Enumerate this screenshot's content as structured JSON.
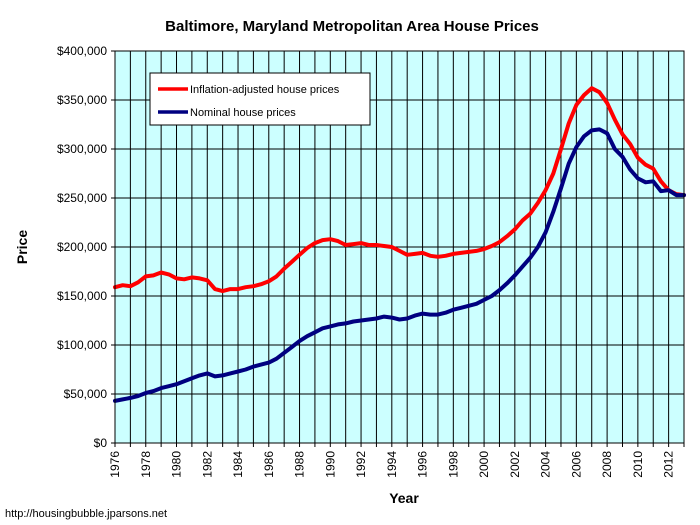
{
  "chart_data": {
    "type": "line",
    "title": "Baltimore, Maryland Metropolitan Area House Prices",
    "xlabel": "Year",
    "ylabel": "Price",
    "xlim": [
      1976,
      2013
    ],
    "ylim": [
      0,
      400000
    ],
    "x_ticks": [
      "1976",
      "1978",
      "1980",
      "1982",
      "1984",
      "1986",
      "1988",
      "1990",
      "1992",
      "1994",
      "1996",
      "1998",
      "2000",
      "2002",
      "2004",
      "2006",
      "2008",
      "2010",
      "2012"
    ],
    "y_ticks": [
      "$0",
      "$50,000",
      "$100,000",
      "$150,000",
      "$200,000",
      "$250,000",
      "$300,000",
      "$350,000",
      "$400,000"
    ],
    "grid": true,
    "legend_position": "top-left",
    "plot_background": "#ccffff",
    "series": [
      {
        "name": "Inflation-adjusted house prices",
        "color": "#ff0000",
        "points": [
          [
            1976.0,
            159000
          ],
          [
            1976.5,
            161000
          ],
          [
            1977.0,
            160000
          ],
          [
            1977.5,
            164000
          ],
          [
            1978.0,
            170000
          ],
          [
            1978.5,
            171000
          ],
          [
            1979.0,
            174000
          ],
          [
            1979.5,
            172000
          ],
          [
            1980.0,
            168000
          ],
          [
            1980.5,
            167000
          ],
          [
            1981.0,
            169000
          ],
          [
            1981.5,
            168000
          ],
          [
            1982.0,
            166000
          ],
          [
            1982.5,
            157000
          ],
          [
            1983.0,
            155000
          ],
          [
            1983.5,
            157000
          ],
          [
            1984.0,
            157000
          ],
          [
            1984.5,
            159000
          ],
          [
            1985.0,
            160000
          ],
          [
            1985.5,
            162000
          ],
          [
            1986.0,
            165000
          ],
          [
            1986.5,
            170000
          ],
          [
            1987.0,
            178000
          ],
          [
            1987.5,
            185000
          ],
          [
            1988.0,
            192000
          ],
          [
            1988.5,
            199000
          ],
          [
            1989.0,
            204000
          ],
          [
            1989.5,
            207000
          ],
          [
            1990.0,
            208000
          ],
          [
            1990.5,
            206000
          ],
          [
            1991.0,
            202000
          ],
          [
            1991.5,
            203000
          ],
          [
            1992.0,
            204000
          ],
          [
            1992.5,
            202000
          ],
          [
            1993.0,
            202000
          ],
          [
            1993.5,
            201000
          ],
          [
            1994.0,
            200000
          ],
          [
            1994.5,
            196000
          ],
          [
            1995.0,
            192000
          ],
          [
            1995.5,
            193000
          ],
          [
            1996.0,
            194000
          ],
          [
            1996.5,
            191000
          ],
          [
            1997.0,
            190000
          ],
          [
            1997.5,
            191000
          ],
          [
            1998.0,
            193000
          ],
          [
            1998.5,
            194000
          ],
          [
            1999.0,
            195000
          ],
          [
            1999.5,
            196000
          ],
          [
            2000.0,
            198000
          ],
          [
            2000.5,
            201000
          ],
          [
            2001.0,
            205000
          ],
          [
            2001.5,
            211000
          ],
          [
            2002.0,
            218000
          ],
          [
            2002.5,
            227000
          ],
          [
            2003.0,
            234000
          ],
          [
            2003.5,
            245000
          ],
          [
            2004.0,
            258000
          ],
          [
            2004.5,
            275000
          ],
          [
            2005.0,
            300000
          ],
          [
            2005.5,
            326000
          ],
          [
            2006.0,
            345000
          ],
          [
            2006.5,
            355000
          ],
          [
            2007.0,
            362000
          ],
          [
            2007.5,
            358000
          ],
          [
            2008.0,
            347000
          ],
          [
            2008.5,
            330000
          ],
          [
            2009.0,
            315000
          ],
          [
            2009.5,
            305000
          ],
          [
            2010.0,
            291000
          ],
          [
            2010.5,
            284000
          ],
          [
            2011.0,
            280000
          ],
          [
            2011.5,
            267000
          ],
          [
            2012.0,
            258000
          ],
          [
            2012.5,
            254000
          ],
          [
            2013.0,
            253000
          ]
        ]
      },
      {
        "name": "Nominal house prices",
        "color": "#000080",
        "points": [
          [
            1976.0,
            43000
          ],
          [
            1976.5,
            44500
          ],
          [
            1977.0,
            46000
          ],
          [
            1977.5,
            48000
          ],
          [
            1978.0,
            51000
          ],
          [
            1978.5,
            53000
          ],
          [
            1979.0,
            56000
          ],
          [
            1979.5,
            58000
          ],
          [
            1980.0,
            60000
          ],
          [
            1980.5,
            63000
          ],
          [
            1981.0,
            66000
          ],
          [
            1981.5,
            69000
          ],
          [
            1982.0,
            71000
          ],
          [
            1982.5,
            68000
          ],
          [
            1983.0,
            69000
          ],
          [
            1983.5,
            71000
          ],
          [
            1984.0,
            73000
          ],
          [
            1984.5,
            75000
          ],
          [
            1985.0,
            78000
          ],
          [
            1985.5,
            80000
          ],
          [
            1986.0,
            82000
          ],
          [
            1986.5,
            86000
          ],
          [
            1987.0,
            92000
          ],
          [
            1987.5,
            98000
          ],
          [
            1988.0,
            104000
          ],
          [
            1988.5,
            109000
          ],
          [
            1989.0,
            113000
          ],
          [
            1989.5,
            117000
          ],
          [
            1990.0,
            119000
          ],
          [
            1990.5,
            121000
          ],
          [
            1991.0,
            122000
          ],
          [
            1991.5,
            124000
          ],
          [
            1992.0,
            125000
          ],
          [
            1992.5,
            126000
          ],
          [
            1993.0,
            127000
          ],
          [
            1993.5,
            129000
          ],
          [
            1994.0,
            128000
          ],
          [
            1994.5,
            126000
          ],
          [
            1995.0,
            127000
          ],
          [
            1995.5,
            130000
          ],
          [
            1996.0,
            132000
          ],
          [
            1996.5,
            131000
          ],
          [
            1997.0,
            131000
          ],
          [
            1997.5,
            133000
          ],
          [
            1998.0,
            136000
          ],
          [
            1998.5,
            138000
          ],
          [
            1999.0,
            140000
          ],
          [
            1999.5,
            142000
          ],
          [
            2000.0,
            146000
          ],
          [
            2000.5,
            150000
          ],
          [
            2001.0,
            156000
          ],
          [
            2001.5,
            163000
          ],
          [
            2002.0,
            171000
          ],
          [
            2002.5,
            180000
          ],
          [
            2003.0,
            189000
          ],
          [
            2003.5,
            200000
          ],
          [
            2004.0,
            215000
          ],
          [
            2004.5,
            236000
          ],
          [
            2005.0,
            260000
          ],
          [
            2005.5,
            285000
          ],
          [
            2006.0,
            302000
          ],
          [
            2006.5,
            313000
          ],
          [
            2007.0,
            319000
          ],
          [
            2007.5,
            320000
          ],
          [
            2008.0,
            316000
          ],
          [
            2008.5,
            300000
          ],
          [
            2009.0,
            292000
          ],
          [
            2009.5,
            279000
          ],
          [
            2010.0,
            270000
          ],
          [
            2010.5,
            266000
          ],
          [
            2011.0,
            267000
          ],
          [
            2011.5,
            257000
          ],
          [
            2012.0,
            258000
          ],
          [
            2012.5,
            253000
          ],
          [
            2013.0,
            253000
          ]
        ]
      }
    ]
  },
  "footer": {
    "source": "http://housingbubble.jparsons.net"
  }
}
